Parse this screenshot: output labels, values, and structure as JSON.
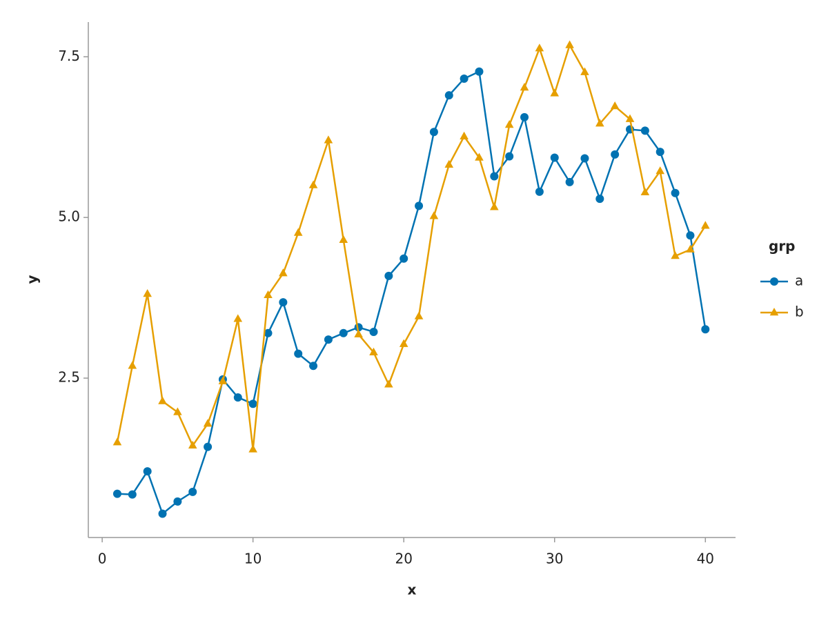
{
  "chart_data": {
    "type": "line",
    "x_label": "x",
    "y_label": "y",
    "legend_title": "grp",
    "legend": "right",
    "grid": false,
    "x": [
      1,
      2,
      3,
      4,
      5,
      6,
      7,
      8,
      9,
      10,
      11,
      12,
      13,
      14,
      15,
      16,
      17,
      18,
      19,
      20,
      21,
      22,
      23,
      24,
      25,
      26,
      27,
      28,
      29,
      30,
      31,
      32,
      33,
      34,
      35,
      36,
      37,
      38,
      39,
      40
    ],
    "series": [
      {
        "name": "a",
        "color": "#0072B2",
        "marker": "circle",
        "values": [
          0.7,
          0.69,
          1.05,
          0.39,
          0.58,
          0.73,
          1.43,
          2.48,
          2.2,
          2.1,
          3.2,
          3.68,
          2.88,
          2.69,
          3.1,
          3.2,
          3.29,
          3.22,
          4.09,
          4.36,
          5.18,
          6.33,
          6.9,
          7.16,
          7.27,
          5.64,
          5.95,
          6.56,
          5.4,
          5.93,
          5.55,
          5.92,
          5.29,
          5.98,
          6.37,
          6.35,
          6.02,
          5.38,
          4.72,
          3.26
        ]
      },
      {
        "name": "b",
        "color": "#E69F00",
        "marker": "triangle",
        "values": [
          1.5,
          2.69,
          3.81,
          2.14,
          1.97,
          1.45,
          1.79,
          2.45,
          3.42,
          1.39,
          3.79,
          4.13,
          4.76,
          5.5,
          6.2,
          4.65,
          3.18,
          2.9,
          2.4,
          3.03,
          3.46,
          5.02,
          5.82,
          6.26,
          5.93,
          5.16,
          6.44,
          7.02,
          7.63,
          6.93,
          7.68,
          7.26,
          6.46,
          6.73,
          6.53,
          5.39,
          5.72,
          4.4,
          4.5,
          4.87
        ]
      }
    ],
    "xlim": [
      -0.92,
      42.0
    ],
    "xticks": [
      0,
      10,
      20,
      30,
      40
    ],
    "ylim": [
      0.02,
      8.04
    ],
    "yticks": [
      2.5,
      {
        "value": 5,
        "label": "5.0"
      },
      7.5
    ]
  }
}
